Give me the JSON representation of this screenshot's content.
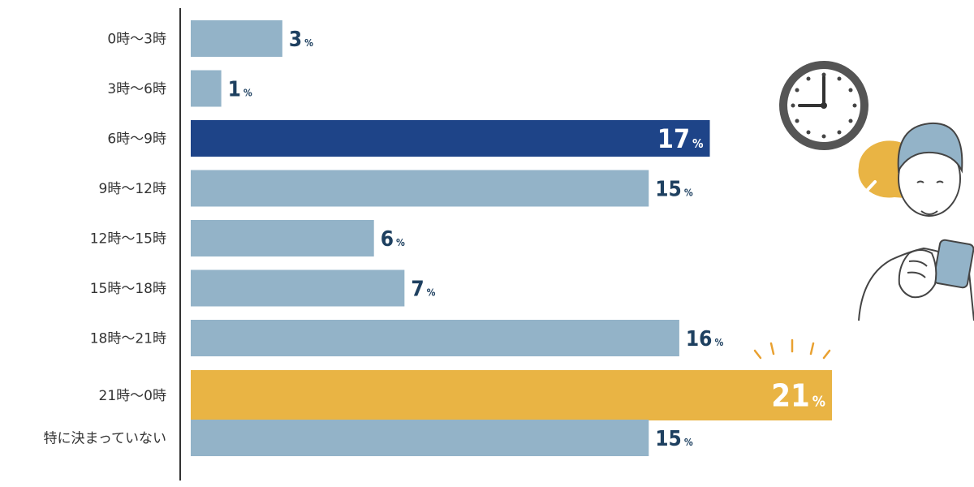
{
  "chart_data": {
    "type": "bar",
    "orientation": "horizontal",
    "categories": [
      "0時～3時",
      "3時～6時",
      "6時～9時",
      "9時～12時",
      "12時～15時",
      "15時～18時",
      "18時～21時",
      "21時～0時",
      "特に決まっていない"
    ],
    "values": [
      3,
      1,
      17,
      15,
      6,
      7,
      16,
      21,
      15
    ],
    "unit": "%",
    "xlim": [
      0,
      21
    ],
    "grid": false,
    "legend": "none",
    "highlights": [
      {
        "category": "6時～9時",
        "color": "#1e4488"
      },
      {
        "category": "21時～0時",
        "color": "#e9b444"
      }
    ]
  },
  "colors": {
    "bar_default": "#93b3c8",
    "bar_highlight_blue": "#1e4488",
    "bar_highlight_yellow": "#e9b444",
    "value_text": "#1e4060",
    "axis_line": "#333333",
    "accent_orange": "#e9a131"
  },
  "illustration": {
    "icons": [
      "clock-icon",
      "checkmark-bubble-icon",
      "person-with-phone-icon"
    ]
  }
}
